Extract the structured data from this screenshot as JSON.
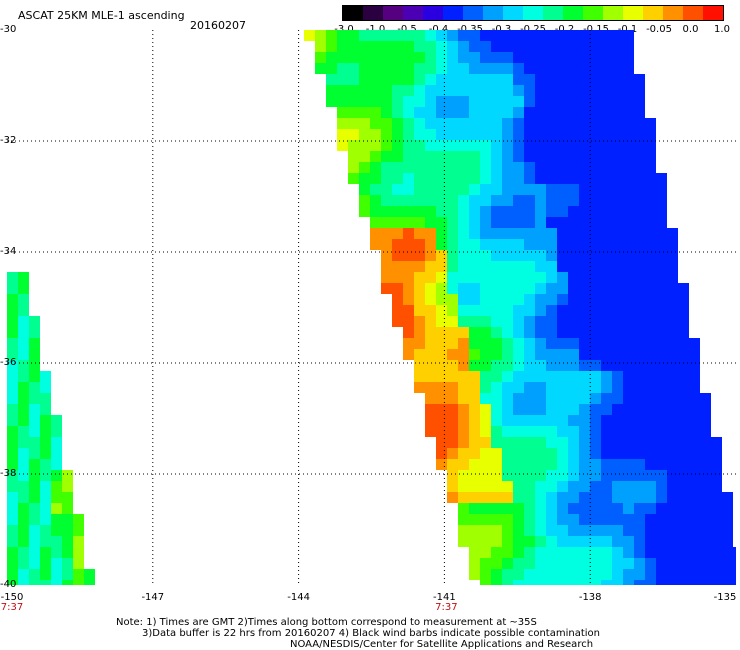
{
  "header": {
    "title": "ASCAT 25KM MLE-1 ascending",
    "date": "20160207"
  },
  "colorbar": {
    "tick_labels": [
      "-3.0",
      "-1.0",
      "-0.5",
      "-0.4",
      "-0.35",
      "-0.3",
      "-0.25",
      "-0.2",
      "-0.15",
      "-0.1",
      "-0.05",
      "0.0",
      "1.0"
    ],
    "colors": [
      "#000000",
      "#2a0040",
      "#55007f",
      "#4b00b4",
      "#2a00e0",
      "#0020ff",
      "#0060ff",
      "#00a0ff",
      "#00d8ff",
      "#00ffe0",
      "#00ff90",
      "#00ff30",
      "#40ff00",
      "#a0ff00",
      "#e8ff00",
      "#ffd000",
      "#ff9000",
      "#ff5000",
      "#ff1000"
    ]
  },
  "axes": {
    "lat_labels": [
      "-30",
      "-32",
      "-34",
      "-36",
      "-38",
      "-40"
    ],
    "lon_labels": [
      "-150",
      "-147",
      "-144",
      "-141",
      "-138",
      "-135"
    ],
    "lat_range": [
      -30,
      -40
    ],
    "lon_range": [
      -150,
      -135
    ],
    "grid": "dotted"
  },
  "time_labels": [
    {
      "text": "7:37",
      "lon": -150
    },
    {
      "text": "7:37",
      "lon": -141
    }
  ],
  "notes": {
    "line1": "Note: 1) Times are GMT 2)Times along bottom correspond to measurement at ~35S",
    "line2": "3)Data buffer is 22 hrs from 20160207 4) Black wind barbs indicate possible contamination",
    "line3": "NOAA/NESDIS/Center for Satellite Applications and Research"
  }
}
